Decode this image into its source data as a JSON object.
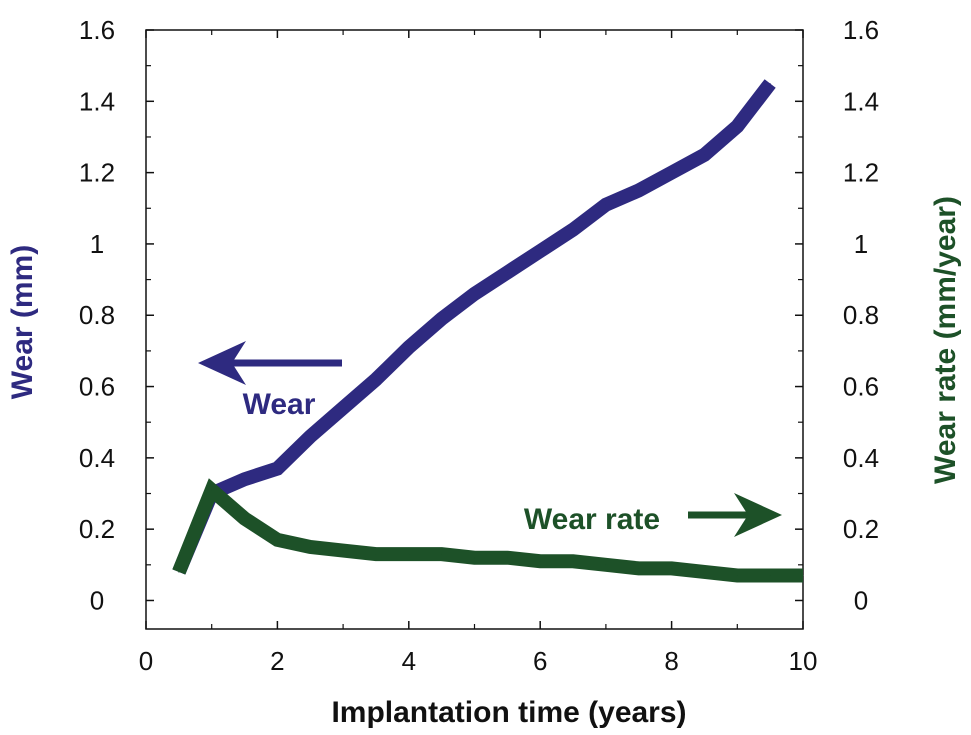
{
  "chart_data": {
    "type": "line",
    "title": "",
    "xlabel": "Implantation time (years)",
    "ylabel_left": "Wear (mm)",
    "ylabel_right": "Wear rate (mm/year)",
    "xlim": [
      0,
      10
    ],
    "ylim_left": [
      -0.08,
      1.6
    ],
    "ylim_right": [
      -0.08,
      1.6
    ],
    "x_ticks": [
      0,
      2,
      4,
      6,
      8,
      10
    ],
    "x_tick_labels": [
      "0",
      "2",
      "4",
      "6",
      "8",
      "10"
    ],
    "y_ticks": [
      0,
      0.2,
      0.4,
      0.6,
      0.8,
      1,
      1.2,
      1.4,
      1.6
    ],
    "y_tick_labels": [
      "0",
      "0.2",
      "0.4",
      "0.6",
      "0.8",
      "1",
      "1.2",
      "1.4",
      "1.6"
    ],
    "grid": false,
    "series": [
      {
        "name": "Wear",
        "axis": "left",
        "color": "#2e2a80",
        "x": [
          0.5,
          1.0,
          1.5,
          2.0,
          2.5,
          3.0,
          3.5,
          4.0,
          4.5,
          5.0,
          5.5,
          6.0,
          6.5,
          7.0,
          7.5,
          8.0,
          8.5,
          9.0,
          9.5
        ],
        "y": [
          0.08,
          0.3,
          0.34,
          0.37,
          0.46,
          0.54,
          0.62,
          0.71,
          0.79,
          0.86,
          0.92,
          0.98,
          1.04,
          1.11,
          1.15,
          1.2,
          1.25,
          1.33,
          1.45
        ]
      },
      {
        "name": "Wear rate",
        "axis": "right",
        "color": "#1d5128",
        "x": [
          0.5,
          1.0,
          1.5,
          2.0,
          2.5,
          3.0,
          3.5,
          4.0,
          4.5,
          5.0,
          5.5,
          6.0,
          6.5,
          7.0,
          7.5,
          8.0,
          8.5,
          9.0,
          9.5,
          10.0
        ],
        "y": [
          0.08,
          0.31,
          0.23,
          0.17,
          0.15,
          0.14,
          0.13,
          0.13,
          0.13,
          0.12,
          0.12,
          0.11,
          0.11,
          0.1,
          0.09,
          0.09,
          0.08,
          0.07,
          0.07,
          0.07
        ]
      }
    ],
    "annotations": [
      {
        "text": "Wear",
        "arrow": "left",
        "color": "#2e2a80"
      },
      {
        "text": "Wear rate",
        "arrow": "right",
        "color": "#1d5128"
      }
    ]
  }
}
